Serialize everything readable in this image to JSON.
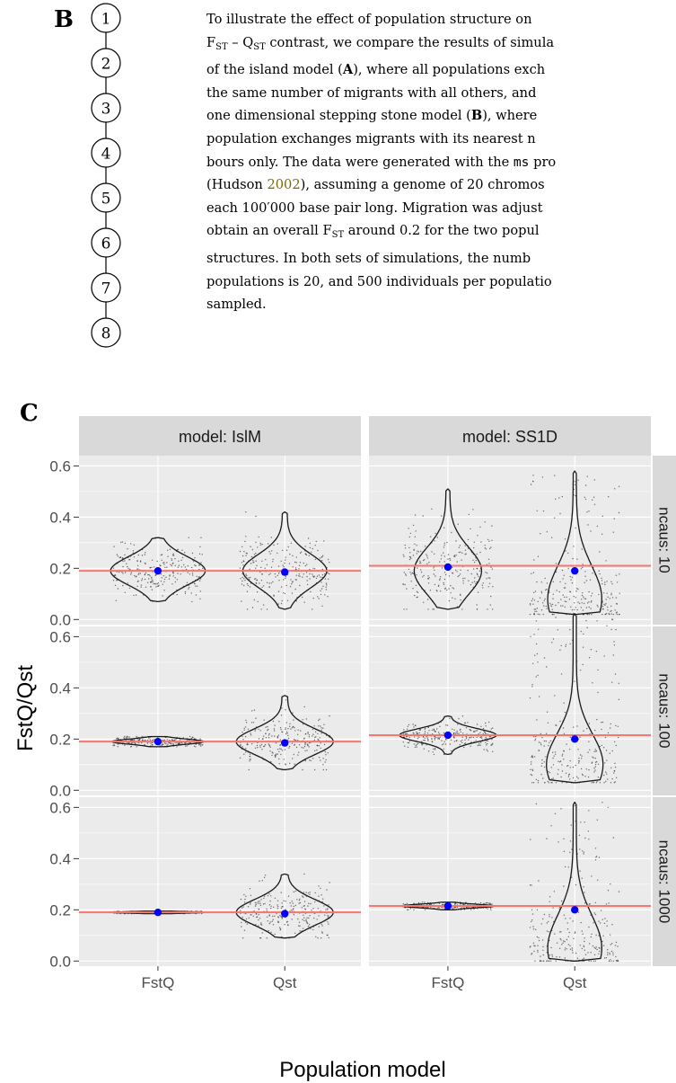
{
  "panel_b": {
    "letter": "B",
    "nodes": [
      "1",
      "2",
      "3",
      "4",
      "5",
      "6",
      "7",
      "8"
    ]
  },
  "paragraph": {
    "parts": {
      "p1": "To illustrate the effect of population structure on",
      "p2a": "F",
      "p2b": "ST",
      "p2c": " – Q",
      "p2d": "ST",
      "p2e": " contrast, we compare the results of simula",
      "p3a": "of the island model (",
      "p3b": "A",
      "p3c": "), where all populations exch",
      "p4": "the same number of migrants with all others, and",
      "p5a": "one dimensional stepping stone model (",
      "p5b": "B",
      "p5c": "), where",
      "p6": "population exchanges migrants with its nearest n",
      "p7a": "bours only. The data were generated with the ",
      "p7b": "ms",
      "p7c": " pro",
      "p8a": "(Hudson ",
      "p8b": "2002",
      "p8c": "), assuming a genome of 20 chromos",
      "p9": "each 100′000 base pair long. Migration was adjust",
      "p10a": "obtain an overall F",
      "p10b": "ST",
      "p10c": " around 0.2 for the two popul",
      "p11": "structures. In both sets of simulations, the numb",
      "p12": "populations is 20, and 500 individuals per populatio",
      "p13": "sampled."
    }
  },
  "panel_c": {
    "letter": "C"
  },
  "chart_data": {
    "type": "violin",
    "xlabel": "Population model",
    "ylabel": "FstQ/Qst",
    "categories": [
      "FstQ",
      "Qst"
    ],
    "ylim": [
      -0.02,
      0.64
    ],
    "yticks": [
      0.0,
      0.2,
      0.4,
      0.6
    ],
    "ytick_labels": [
      "0.0",
      "0.2",
      "0.4",
      "0.6"
    ],
    "facet_cols": [
      "model: IslM",
      "model: SS1D"
    ],
    "facet_rows": [
      "ncaus: 10",
      "ncaus: 100",
      "ncaus: 1000"
    ],
    "grid": true,
    "colors": {
      "mean_point": "#0000ff",
      "reference_line": "#f8766d",
      "panel_bg": "#ebebeb",
      "strip_bg": "#d9d9d9"
    },
    "panels": [
      {
        "row": "ncaus: 10",
        "col": "model: IslM",
        "reference_line": 0.19,
        "FstQ": {
          "mean": 0.19,
          "min": 0.07,
          "max": 0.32,
          "mode": 0.19,
          "spread": 0.055
        },
        "Qst": {
          "mean": 0.185,
          "min": 0.04,
          "max": 0.42,
          "mode": 0.19,
          "spread": 0.065
        }
      },
      {
        "row": "ncaus: 10",
        "col": "model: SS1D",
        "reference_line": 0.21,
        "FstQ": {
          "mean": 0.205,
          "min": 0.04,
          "max": 0.51,
          "mode": 0.19,
          "spread": 0.09
        },
        "Qst": {
          "mean": 0.19,
          "min": 0.02,
          "max": 0.58,
          "mode": 0.08,
          "spread": 0.13
        }
      },
      {
        "row": "ncaus: 100",
        "col": "model: IslM",
        "reference_line": 0.19,
        "FstQ": {
          "mean": 0.19,
          "min": 0.17,
          "max": 0.21,
          "mode": 0.19,
          "spread": 0.01
        },
        "Qst": {
          "mean": 0.185,
          "min": 0.08,
          "max": 0.37,
          "mode": 0.19,
          "spread": 0.05
        }
      },
      {
        "row": "ncaus: 100",
        "col": "model: SS1D",
        "reference_line": 0.215,
        "FstQ": {
          "mean": 0.215,
          "min": 0.14,
          "max": 0.29,
          "mode": 0.215,
          "spread": 0.025
        },
        "Qst": {
          "mean": 0.2,
          "min": 0.03,
          "max": 0.69,
          "mode": 0.1,
          "spread": 0.12
        }
      },
      {
        "row": "ncaus: 1000",
        "col": "model: IslM",
        "reference_line": 0.19,
        "FstQ": {
          "mean": 0.19,
          "min": 0.185,
          "max": 0.195,
          "mode": 0.19,
          "spread": 0.003
        },
        "Qst": {
          "mean": 0.185,
          "min": 0.09,
          "max": 0.34,
          "mode": 0.19,
          "spread": 0.05
        }
      },
      {
        "row": "ncaus: 1000",
        "col": "model: SS1D",
        "reference_line": 0.215,
        "FstQ": {
          "mean": 0.215,
          "min": 0.2,
          "max": 0.23,
          "mode": 0.215,
          "spread": 0.007
        },
        "Qst": {
          "mean": 0.2,
          "min": 0.0,
          "max": 0.62,
          "mode": 0.05,
          "spread": 0.13
        }
      }
    ]
  }
}
